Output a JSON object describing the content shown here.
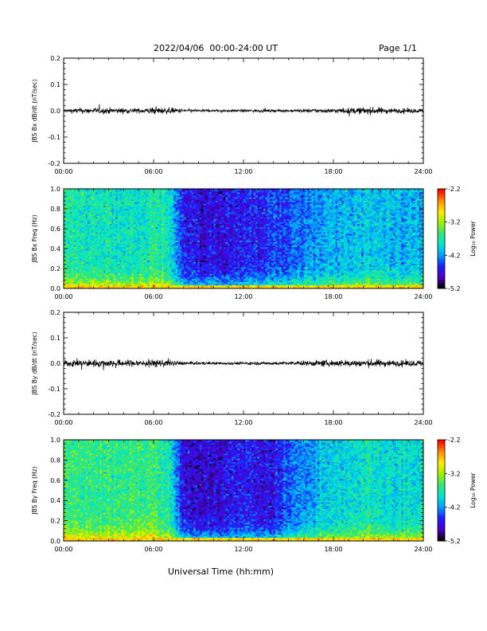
{
  "header": {
    "title": "2022/04/06  00:00-24:00 UT",
    "page": "Page 1/1"
  },
  "x_axis_title": "Universal Time (hh:mm)",
  "colorbar": {
    "label": "Log₁₀ Power",
    "ticks": [
      "-2.2",
      "-3.2",
      "-4.2",
      "-5.2"
    ],
    "range": [
      -5.2,
      -2.2
    ],
    "colors": [
      "#000000",
      "#4b00c8",
      "#1e1eff",
      "#00a0ff",
      "#00e6d2",
      "#32e678",
      "#a0f000",
      "#ffeb00",
      "#ff8c00",
      "#ff0000"
    ]
  },
  "chart_data": [
    {
      "type": "line",
      "ylabel": "JBS Bx dB/dt (nT/sec)",
      "xlim": [
        0,
        24
      ],
      "ylim": [
        -0.2,
        0.2
      ],
      "x_tick_labels": [
        "00:00",
        "06:00",
        "12:00",
        "18:00",
        "24:00"
      ],
      "y_tick_labels": [
        "0.2",
        "0.1",
        "0.0",
        "-0.1",
        "-0.2"
      ],
      "series_color": "#000000",
      "envelope": {
        "hours": [
          0,
          1,
          2,
          3,
          4,
          5,
          6,
          7,
          8,
          9,
          10,
          11,
          12,
          13,
          14,
          15,
          16,
          17,
          18,
          19,
          20,
          21,
          22,
          23,
          24
        ],
        "amplitude": [
          0.012,
          0.018,
          0.017,
          0.02,
          0.017,
          0.015,
          0.022,
          0.02,
          0.012,
          0.009,
          0.008,
          0.008,
          0.009,
          0.009,
          0.008,
          0.009,
          0.012,
          0.014,
          0.015,
          0.018,
          0.022,
          0.022,
          0.016,
          0.015,
          0.014
        ]
      }
    },
    {
      "type": "heatmap",
      "ylabel": "JBS Bx Freq (Hz)",
      "xlim": [
        0,
        24
      ],
      "ylim": [
        0,
        1.0
      ],
      "x_tick_labels": [
        "00:00",
        "06:00",
        "12:00",
        "18:00",
        "24:00"
      ],
      "y_tick_labels": [
        "1.0",
        "0.8",
        "0.6",
        "0.4",
        "0.2",
        "0.0"
      ],
      "power_range": [
        -5.2,
        -2.2
      ],
      "background_power_by_hour": [
        -3.7,
        -3.8,
        -3.8,
        -3.8,
        -3.8,
        -3.8,
        -3.7,
        -3.8,
        -4.6,
        -4.7,
        -4.7,
        -4.7,
        -4.6,
        -4.6,
        -4.5,
        -4.4,
        -4.3,
        -4.2,
        -4.1,
        -4.1,
        -4.0,
        -4.0,
        -4.1,
        -4.1,
        -4.1
      ]
    },
    {
      "type": "line",
      "ylabel": "JBS By dB/dt (nT/sec)",
      "xlim": [
        0,
        24
      ],
      "ylim": [
        -0.2,
        0.2
      ],
      "x_tick_labels": [
        "00:00",
        "06:00",
        "12:00",
        "18:00",
        "24:00"
      ],
      "y_tick_labels": [
        "0.2",
        "0.1",
        "0.0",
        "-0.1",
        "-0.2"
      ],
      "series_color": "#000000",
      "envelope": {
        "hours": [
          0,
          1,
          2,
          3,
          4,
          5,
          6,
          7,
          8,
          9,
          10,
          11,
          12,
          13,
          14,
          15,
          16,
          17,
          18,
          19,
          20,
          21,
          22,
          23,
          24
        ],
        "amplitude": [
          0.02,
          0.025,
          0.024,
          0.025,
          0.023,
          0.024,
          0.026,
          0.022,
          0.012,
          0.01,
          0.01,
          0.009,
          0.01,
          0.01,
          0.01,
          0.012,
          0.016,
          0.02,
          0.022,
          0.024,
          0.025,
          0.025,
          0.02,
          0.02,
          0.022
        ]
      }
    },
    {
      "type": "heatmap",
      "ylabel": "JBS By Freq (Hz)",
      "xlim": [
        0,
        24
      ],
      "ylim": [
        0,
        1.0
      ],
      "x_tick_labels": [
        "00:00",
        "06:00",
        "12:00",
        "18:00",
        "24:00"
      ],
      "y_tick_labels": [
        "1.0",
        "0.8",
        "0.6",
        "0.4",
        "0.2",
        "0.0"
      ],
      "power_range": [
        -5.2,
        -2.2
      ],
      "background_power_by_hour": [
        -3.6,
        -3.6,
        -3.6,
        -3.6,
        -3.6,
        -3.6,
        -3.6,
        -3.7,
        -4.7,
        -4.8,
        -4.8,
        -4.7,
        -4.6,
        -4.7,
        -4.7,
        -4.4,
        -4.2,
        -4.1,
        -4.0,
        -3.9,
        -3.8,
        -3.8,
        -3.9,
        -3.9,
        -3.9
      ]
    }
  ]
}
